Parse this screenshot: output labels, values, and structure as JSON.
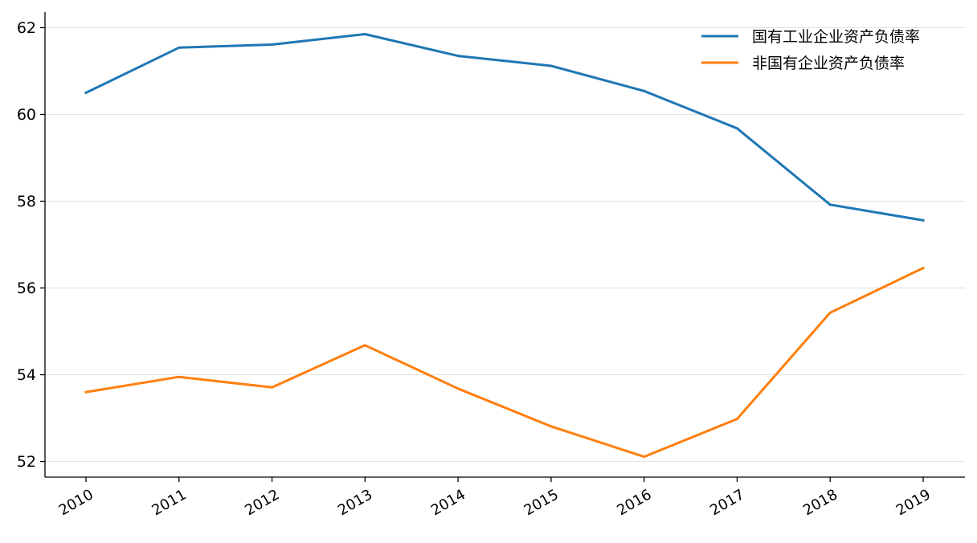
{
  "chart_data": {
    "type": "line",
    "title": "",
    "xlabel": "",
    "ylabel": "",
    "x": [
      "2010",
      "2011",
      "2012",
      "2013",
      "2014",
      "2015",
      "2016",
      "2017",
      "2018",
      "2019"
    ],
    "series": [
      {
        "name": "国有工业企业资产负债率",
        "color": "#1f77b4",
        "values": [
          60.5,
          61.54,
          61.61,
          61.85,
          61.35,
          61.12,
          60.54,
          59.68,
          57.92,
          57.56
        ]
      },
      {
        "name": "非国有企业资产负债率",
        "color": "#ff7f0e",
        "values": [
          53.6,
          53.95,
          53.71,
          54.68,
          53.68,
          52.81,
          52.11,
          52.98,
          55.43,
          56.46
        ]
      }
    ],
    "ylim": [
      51.64,
      62.36
    ],
    "yticks": [
      52,
      54,
      56,
      58,
      60,
      62
    ],
    "grid": "horizontal",
    "legend_position": "top-right"
  }
}
